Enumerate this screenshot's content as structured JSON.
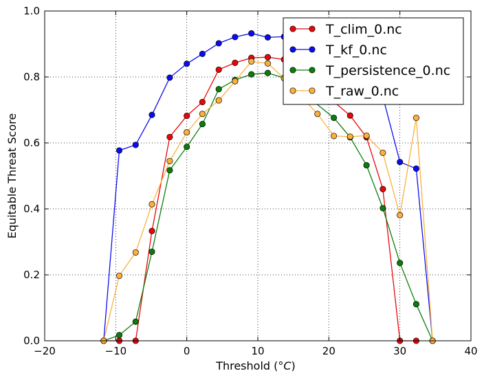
{
  "chart_data": {
    "type": "line",
    "title": "",
    "xlabel": "Threshold (",
    "xlabel_unit": "°C",
    "xlabel_close": ")",
    "ylabel": "Equitable Threat Score",
    "xlim": [
      -20,
      40
    ],
    "ylim": [
      0.0,
      1.0
    ],
    "x_ticks": [
      -20,
      -10,
      0,
      10,
      20,
      30,
      40
    ],
    "y_ticks": [
      0.0,
      0.2,
      0.4,
      0.6,
      0.8,
      1.0
    ],
    "x_tick_labels": [
      "−20",
      "−10",
      "0",
      "10",
      "20",
      "30",
      "40"
    ],
    "y_tick_labels": [
      "0.0",
      "0.2",
      "0.4",
      "0.6",
      "0.8",
      "1.0"
    ],
    "grid": true,
    "legend_position": "top-right",
    "series": [
      {
        "name": "T_clim_0.nc",
        "color": "#e8060b",
        "points": [
          [
            -11.7,
            0.0
          ],
          [
            -9.5,
            0.0
          ],
          [
            -7.2,
            0.0
          ],
          [
            -4.9,
            0.333
          ],
          [
            -2.4,
            0.618
          ],
          [
            0.0,
            0.682
          ],
          [
            2.2,
            0.724
          ],
          [
            4.5,
            0.822
          ],
          [
            6.8,
            0.843
          ],
          [
            9.1,
            0.858
          ],
          [
            11.4,
            0.86
          ],
          [
            13.7,
            0.853
          ],
          [
            23.0,
            0.683
          ],
          [
            25.3,
            0.617
          ],
          [
            27.6,
            0.46
          ],
          [
            30.0,
            0.0
          ],
          [
            32.3,
            0.0
          ]
        ]
      },
      {
        "name": "T_kf_0.nc",
        "color": "#0a0cf0",
        "points": [
          [
            -11.7,
            0.0
          ],
          [
            -9.5,
            0.577
          ],
          [
            -7.2,
            0.594
          ],
          [
            -4.9,
            0.685
          ],
          [
            -2.4,
            0.798
          ],
          [
            0.0,
            0.84
          ],
          [
            2.2,
            0.87
          ],
          [
            4.5,
            0.902
          ],
          [
            6.8,
            0.921
          ],
          [
            9.1,
            0.932
          ],
          [
            11.4,
            0.92
          ],
          [
            13.7,
            0.922
          ],
          [
            27.6,
            0.74
          ],
          [
            30.0,
            0.542
          ],
          [
            32.3,
            0.522
          ],
          [
            34.6,
            0.0
          ]
        ]
      },
      {
        "name": "T_persistence_0.nc",
        "color": "#0a7d0a",
        "points": [
          [
            -11.7,
            0.0
          ],
          [
            -9.5,
            0.017
          ],
          [
            -7.2,
            0.058
          ],
          [
            -4.9,
            0.27
          ],
          [
            -2.4,
            0.517
          ],
          [
            0.0,
            0.588
          ],
          [
            2.2,
            0.657
          ],
          [
            4.5,
            0.763
          ],
          [
            6.8,
            0.791
          ],
          [
            9.1,
            0.808
          ],
          [
            11.4,
            0.812
          ],
          [
            13.7,
            0.797
          ],
          [
            20.7,
            0.676
          ],
          [
            23.0,
            0.617
          ],
          [
            25.3,
            0.532
          ],
          [
            27.6,
            0.402
          ],
          [
            30.0,
            0.236
          ],
          [
            32.3,
            0.111
          ],
          [
            34.6,
            0.0
          ]
        ]
      },
      {
        "name": "T_raw_0.nc",
        "color": "#fbb03b",
        "points": [
          [
            -11.7,
            0.0
          ],
          [
            -9.5,
            0.197
          ],
          [
            -7.2,
            0.268
          ],
          [
            -4.9,
            0.414
          ],
          [
            -2.4,
            0.545
          ],
          [
            0.0,
            0.632
          ],
          [
            2.2,
            0.688
          ],
          [
            4.5,
            0.729
          ],
          [
            6.8,
            0.787
          ],
          [
            9.1,
            0.847
          ],
          [
            11.4,
            0.841
          ],
          [
            13.7,
            0.796
          ],
          [
            18.4,
            0.688
          ],
          [
            20.7,
            0.621
          ],
          [
            23.0,
            0.619
          ],
          [
            25.3,
            0.622
          ],
          [
            27.6,
            0.57
          ],
          [
            30.0,
            0.381
          ],
          [
            32.3,
            0.676
          ],
          [
            34.6,
            0.0
          ]
        ]
      }
    ]
  }
}
